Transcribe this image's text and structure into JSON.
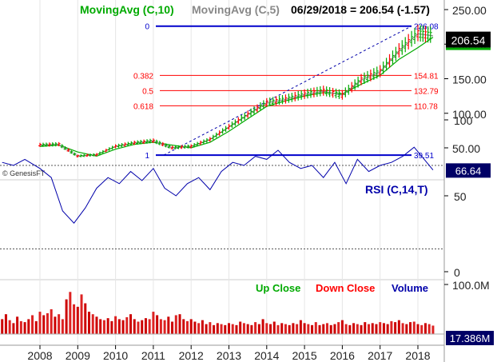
{
  "header": {
    "ma10_label": "MovingAvg (C,10)",
    "ma5_label": "MovingAvg (C,5)",
    "price_readout": "06/29/2018 = 206.54 (-1.57)"
  },
  "watermark": "© GenesisFT",
  "colors": {
    "ma10": "#00aa00",
    "ma5": "#888888",
    "up": "#00aa00",
    "down": "#ff0000",
    "volume": "#cc0000",
    "fib": "#ff0000",
    "fib_extreme": "#0000cc",
    "rsi": "#0000aa",
    "last_price_box": "#000000",
    "volume_box": "#000066"
  },
  "chart_data": [
    {
      "type": "line",
      "panel": "price",
      "title": "",
      "x_ticks": [
        "2008",
        "2009",
        "2010",
        "2011",
        "2012",
        "2013",
        "2014",
        "2015",
        "2016",
        "2017",
        "2018"
      ],
      "y_ticks": [
        "250.00",
        "200.00",
        "150.00",
        "100.00",
        "50.00"
      ],
      "ylim": [
        0,
        250
      ],
      "last_price": "206.54",
      "fib_levels": [
        {
          "ratio": "0",
          "value": "226.08"
        },
        {
          "ratio": "0.382",
          "value": "154.81"
        },
        {
          "ratio": "0.5",
          "value": "132.79"
        },
        {
          "ratio": "0.618",
          "value": "110.78"
        },
        {
          "ratio": "1",
          "value": "39.51"
        }
      ],
      "series": [
        {
          "name": "MovingAvg (C,10)",
          "x": [
            2008,
            2008.5,
            2009,
            2009.5,
            2010,
            2010.5,
            2011,
            2011.5,
            2012,
            2012.5,
            2013,
            2013.5,
            2014,
            2014.5,
            2015,
            2015.5,
            2016,
            2016.5,
            2017,
            2017.5,
            2018,
            2018.4
          ],
          "values": [
            52,
            54,
            44,
            38,
            48,
            55,
            58,
            54,
            50,
            58,
            74,
            92,
            110,
            118,
            125,
            130,
            128,
            142,
            155,
            178,
            195,
            210
          ]
        },
        {
          "name": "MovingAvg (C,5)",
          "x": [
            2008,
            2008.5,
            2009,
            2009.5,
            2010,
            2010.5,
            2011,
            2011.5,
            2012,
            2012.5,
            2013,
            2013.5,
            2014,
            2014.5,
            2015,
            2015.5,
            2016,
            2016.5,
            2017,
            2017.5,
            2018,
            2018.4
          ],
          "values": [
            54,
            55,
            38,
            40,
            52,
            57,
            60,
            50,
            52,
            62,
            80,
            98,
            115,
            120,
            127,
            132,
            126,
            148,
            160,
            190,
            215,
            212
          ]
        }
      ]
    },
    {
      "type": "line",
      "panel": "rsi",
      "title": "RSI (C,14,T)",
      "y_ticks": [
        "100",
        "50",
        "0"
      ],
      "ylim": [
        0,
        100
      ],
      "last_value": "66.64",
      "series": [
        {
          "name": "RSI (C,14,T)",
          "x": [
            2007,
            2007.3,
            2007.6,
            2008,
            2008.3,
            2008.6,
            2008.9,
            2009.2,
            2009.5,
            2009.8,
            2010.1,
            2010.4,
            2010.7,
            2011,
            2011.3,
            2011.6,
            2011.9,
            2012.2,
            2012.5,
            2012.8,
            2013.1,
            2013.4,
            2013.7,
            2014,
            2014.3,
            2014.6,
            2014.9,
            2015.2,
            2015.5,
            2015.8,
            2016.1,
            2016.4,
            2016.7,
            2017,
            2017.3,
            2017.6,
            2017.9,
            2018.1,
            2018.4
          ],
          "values": [
            72,
            70,
            74,
            68,
            62,
            40,
            32,
            42,
            55,
            62,
            58,
            66,
            60,
            68,
            55,
            50,
            58,
            62,
            54,
            66,
            72,
            70,
            76,
            74,
            80,
            72,
            68,
            70,
            62,
            72,
            58,
            74,
            66,
            70,
            72,
            76,
            82,
            76,
            67
          ]
        }
      ]
    },
    {
      "type": "bar",
      "panel": "volume",
      "title": "",
      "legend": [
        "Up Close",
        "Down Close",
        "Volume"
      ],
      "y_ticks": [
        "100.0M"
      ],
      "last_value": "17.386M",
      "x": [
        2007,
        2007.1,
        2007.2,
        2007.3,
        2007.4,
        2007.5,
        2007.6,
        2007.7,
        2007.8,
        2007.9,
        2008,
        2008.1,
        2008.2,
        2008.3,
        2008.4,
        2008.5,
        2008.6,
        2008.7,
        2008.8,
        2008.9,
        2009,
        2009.1,
        2009.2,
        2009.3,
        2009.4,
        2009.5,
        2009.6,
        2009.7,
        2009.8,
        2009.9,
        2010,
        2010.1,
        2010.2,
        2010.3,
        2010.4,
        2010.5,
        2010.6,
        2010.7,
        2010.8,
        2010.9,
        2011,
        2011.1,
        2011.2,
        2011.3,
        2011.4,
        2011.5,
        2011.6,
        2011.7,
        2011.8,
        2011.9,
        2012,
        2012.1,
        2012.2,
        2012.3,
        2012.4,
        2012.5,
        2012.6,
        2012.7,
        2012.8,
        2012.9,
        2013,
        2013.1,
        2013.2,
        2013.3,
        2013.4,
        2013.5,
        2013.6,
        2013.7,
        2013.8,
        2013.9,
        2014,
        2014.1,
        2014.2,
        2014.3,
        2014.4,
        2014.5,
        2014.6,
        2014.7,
        2014.8,
        2014.9,
        2015,
        2015.1,
        2015.2,
        2015.3,
        2015.4,
        2015.5,
        2015.6,
        2015.7,
        2015.8,
        2015.9,
        2016,
        2016.1,
        2016.2,
        2016.3,
        2016.4,
        2016.5,
        2016.6,
        2016.7,
        2016.8,
        2016.9,
        2017,
        2017.1,
        2017.2,
        2017.3,
        2017.4,
        2017.5,
        2017.6,
        2017.7,
        2017.8,
        2017.9,
        2018,
        2018.1,
        2018.2,
        2018.3,
        2018.4
      ],
      "values": [
        30,
        40,
        28,
        22,
        35,
        26,
        24,
        30,
        38,
        26,
        45,
        38,
        42,
        50,
        35,
        40,
        30,
        70,
        85,
        60,
        55,
        80,
        62,
        45,
        40,
        35,
        30,
        28,
        32,
        26,
        36,
        30,
        28,
        34,
        40,
        30,
        25,
        28,
        32,
        30,
        45,
        38,
        30,
        28,
        35,
        25,
        38,
        40,
        30,
        26,
        30,
        25,
        22,
        28,
        20,
        24,
        18,
        22,
        20,
        18,
        22,
        20,
        18,
        25,
        22,
        20,
        18,
        24,
        20,
        30,
        22,
        20,
        25,
        18,
        22,
        20,
        18,
        22,
        20,
        28,
        22,
        20,
        18,
        24,
        18,
        20,
        22,
        18,
        20,
        24,
        28,
        20,
        18,
        22,
        20,
        18,
        24,
        20,
        22,
        20,
        24,
        22,
        20,
        26,
        24,
        28,
        22,
        20,
        24,
        25,
        20,
        18,
        22,
        20,
        17
      ],
      "up_flags": [
        1,
        1,
        0,
        1,
        1,
        0,
        1,
        1,
        0,
        1,
        0,
        1,
        0,
        0,
        1,
        0,
        0,
        1,
        0,
        0,
        1,
        0,
        1,
        1,
        0,
        1,
        1,
        0,
        1,
        1,
        0,
        1,
        1,
        0,
        1,
        1,
        0,
        1,
        1,
        0,
        0,
        1,
        0,
        0,
        1,
        1,
        0,
        1,
        1,
        0,
        1,
        1,
        0,
        1,
        1,
        0,
        1,
        1,
        0,
        1,
        1,
        0,
        1,
        1,
        0,
        1,
        1,
        0,
        1,
        1,
        0,
        1,
        1,
        0,
        1,
        0,
        1,
        1,
        0,
        1,
        1,
        0,
        1,
        0,
        1,
        1,
        0,
        1,
        1,
        0,
        1,
        0,
        1,
        1,
        0,
        1,
        1,
        0,
        1,
        1,
        0,
        1,
        1,
        0,
        1,
        1,
        0,
        1,
        1,
        0,
        1,
        0,
        1,
        0,
        0
      ]
    }
  ]
}
